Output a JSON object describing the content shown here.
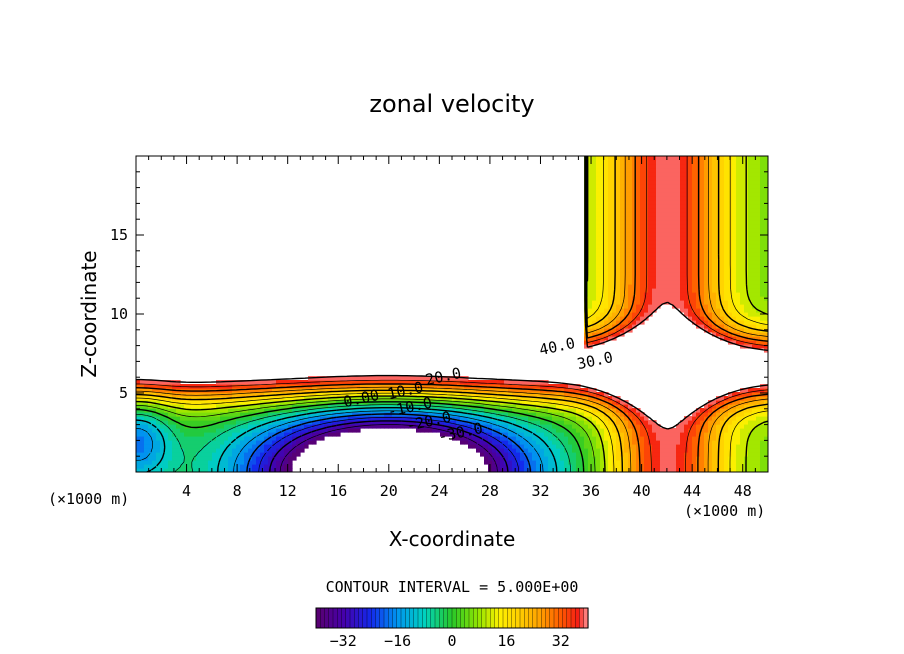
{
  "chart_data": {
    "type": "contour",
    "title": "zonal velocity",
    "xlabel": "X-coordinate",
    "ylabel": "Z-coordinate",
    "x_unit": "(×1000 m)",
    "y_unit": "(×1000 m)",
    "xlim": [
      0,
      50
    ],
    "ylim": [
      0,
      20
    ],
    "x_ticks": [
      4,
      8,
      12,
      16,
      20,
      24,
      28,
      32,
      36,
      40,
      44,
      48
    ],
    "y_ticks": [
      5,
      10,
      15
    ],
    "contour_interval_text": "CONTOUR INTERVAL = 5.000E+00",
    "contour_labels": [
      {
        "text": "40.0",
        "x": 32.0,
        "z": 7.4
      },
      {
        "text": "30.0",
        "x": 35.0,
        "z": 6.5
      },
      {
        "text": "20.0",
        "x": 23.0,
        "z": 5.5
      },
      {
        "text": "10.0",
        "x": 20.0,
        "z": 4.6
      },
      {
        "text": "0.00",
        "x": 16.5,
        "z": 4.1
      },
      {
        "text": "-10.0",
        "x": 20.0,
        "z": 3.5
      },
      {
        "text": "-20.0",
        "x": 21.5,
        "z": 2.6
      },
      {
        "text": "-30.0",
        "x": 24.0,
        "z": 1.9
      }
    ],
    "colorbar": {
      "ticks": [
        -32,
        -16,
        0,
        16,
        32
      ],
      "tick_labels": [
        "−32",
        "−16",
        "0",
        "16",
        "32"
      ],
      "range": [
        -40,
        40
      ]
    },
    "field_summary": {
      "jet_core_max_approx": 40,
      "vortex_min_approx": -40,
      "vortex_center": {
        "x": 20,
        "z": 0
      },
      "upper_left_region_above": 40,
      "right_column_x": 42
    }
  }
}
